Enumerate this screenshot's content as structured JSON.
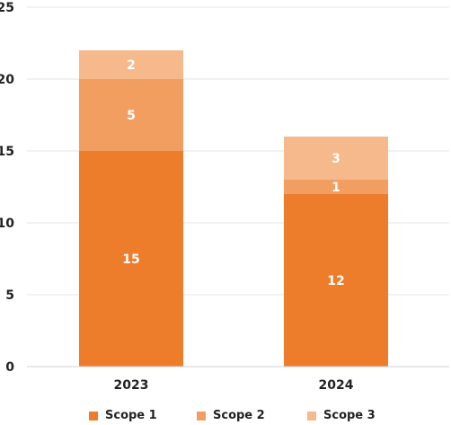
{
  "chart_data": {
    "type": "bar",
    "stacked": true,
    "categories": [
      "2023",
      "2024"
    ],
    "series": [
      {
        "name": "Scope 1",
        "values": [
          15,
          12
        ],
        "color": "#ee7d2b"
      },
      {
        "name": "Scope 2",
        "values": [
          5,
          1
        ],
        "color": "#f29e60"
      },
      {
        "name": "Scope 3",
        "values": [
          2,
          3
        ],
        "color": "#f5b98c"
      }
    ],
    "title": "",
    "xlabel": "",
    "ylabel": "",
    "ylim": [
      0,
      25
    ],
    "yticks": [
      "0",
      "5",
      "10",
      "15",
      "20",
      "25"
    ],
    "grid": true,
    "legend_position": "bottom"
  }
}
